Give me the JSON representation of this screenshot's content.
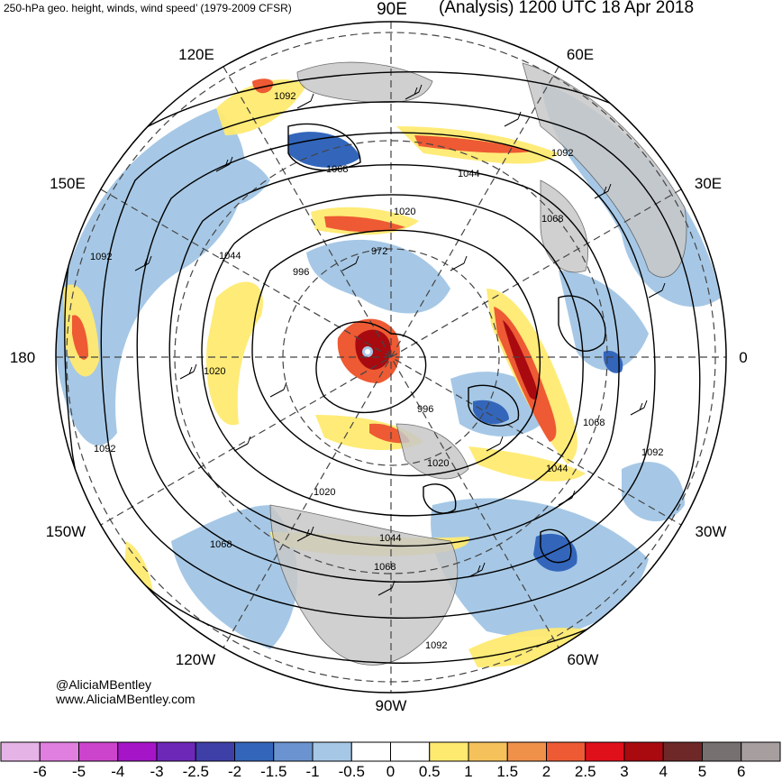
{
  "header": {
    "title_left": "250-hPa geo. height, winds, wind speed’ (1979-2009 CFSR)",
    "title_right": "(Analysis) 1200 UTC 18 Apr 2018"
  },
  "longitude_labels": {
    "n90e": "90E",
    "n60e": "60E",
    "n120e": "120E",
    "n150e": "150E",
    "n30e": "30E",
    "n180": "180",
    "n0": "0",
    "n150w": "150W",
    "n30w": "30W",
    "n120w": "120W",
    "n60w": "60W",
    "n90w": "90W"
  },
  "contour_labels": [
    "1092",
    "1068",
    "1044",
    "1020",
    "996",
    "972",
    "1092",
    "1068",
    "1092",
    "1020",
    "1044",
    "1068",
    "1092",
    "1068",
    "1044",
    "1020",
    "996",
    "1020",
    "1044",
    "1092",
    "996",
    "1068",
    "1020",
    "1092"
  ],
  "credits": {
    "handle": "@AliciaMBentley",
    "website": "www.AliciaMBentley.com"
  },
  "colorbar": {
    "ticks": [
      "-6",
      "-5",
      "-4",
      "-3",
      "-2.5",
      "-2",
      "-1.5",
      "-1",
      "-0.5",
      "0",
      "0.5",
      "1",
      "1.5",
      "2",
      "2.5",
      "3",
      "4",
      "5",
      "6"
    ],
    "colors": [
      "#e6b3e6",
      "#e07fe0",
      "#cc44cc",
      "#a515c7",
      "#6e28b8",
      "#3f3fa8",
      "#3366bb",
      "#6b93cf",
      "#a6c8e6",
      "#ffffff",
      "#ffffff",
      "#ffea70",
      "#f5c15a",
      "#f0914a",
      "#ee5a33",
      "#e0101a",
      "#a80a10",
      "#6e2828",
      "#777070",
      "#a79ea0"
    ]
  },
  "colors": {
    "land": "#c8c8c8",
    "contour": "#000000",
    "background": "#ffffff"
  }
}
